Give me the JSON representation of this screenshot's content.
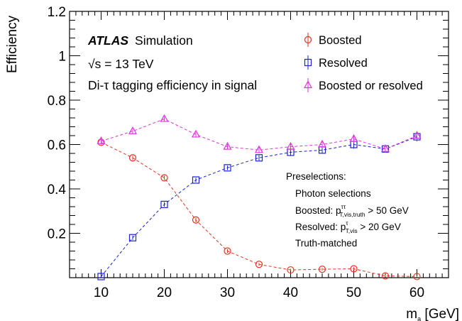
{
  "chart_data": {
    "type": "line",
    "xlabel": "m",
    "xlabel_subscript": "a",
    "xlabel_unit": " [GeV]",
    "ylabel": "Efficiency",
    "xlim": [
      5,
      65
    ],
    "ylim": [
      0,
      1.2
    ],
    "x_ticks": [
      10,
      20,
      30,
      40,
      50,
      60
    ],
    "x_tick_labels": [
      "10",
      "20",
      "30",
      "40",
      "50",
      "60"
    ],
    "y_ticks": [
      0.2,
      0.4,
      0.6,
      0.8,
      1.0,
      1.2
    ],
    "y_tick_labels": [
      "0.2",
      "0.4",
      "0.6",
      "0.8",
      "1",
      "1.2"
    ],
    "x": [
      10,
      15,
      20,
      25,
      30,
      35,
      40,
      45,
      50,
      55,
      60
    ],
    "series": [
      {
        "name": "Boosted",
        "marker": "circle",
        "color": "#e8321e",
        "values": [
          0.61,
          0.54,
          0.45,
          0.26,
          0.12,
          0.06,
          0.035,
          0.038,
          0.04,
          0.008,
          0.005
        ],
        "errors": [
          0.01,
          0.01,
          0.01,
          0.01,
          0.008,
          0.006,
          0.005,
          0.006,
          0.007,
          0.004,
          0.004
        ]
      },
      {
        "name": "Resolved",
        "marker": "square",
        "color": "#1a23d9",
        "values": [
          0.005,
          0.18,
          0.33,
          0.44,
          0.495,
          0.54,
          0.565,
          0.575,
          0.6,
          0.58,
          0.635
        ],
        "errors": [
          0.004,
          0.01,
          0.01,
          0.01,
          0.01,
          0.012,
          0.015,
          0.015,
          0.018,
          0.015,
          0.02
        ]
      },
      {
        "name": "Boosted or resolved",
        "marker": "triangle",
        "color": "#e033e0",
        "values": [
          0.615,
          0.66,
          0.715,
          0.645,
          0.59,
          0.575,
          0.59,
          0.6,
          0.625,
          0.58,
          0.64
        ],
        "errors": [
          0.01,
          0.01,
          0.01,
          0.01,
          0.012,
          0.014,
          0.015,
          0.016,
          0.018,
          0.016,
          0.02
        ]
      }
    ],
    "legend_position": "top-right",
    "annotations": {
      "atlas": "ATLAS",
      "simulation": "Simulation",
      "energy_sqrt": "√s",
      "energy_rest": " = 13 TeV",
      "description_prefix": "Di-",
      "description_tau": "τ",
      "description_rest": " tagging efficiency in signal"
    },
    "preselections": {
      "title": "Preselections:",
      "photon": "Photon selections",
      "boosted_prefix": "Boosted: p",
      "boosted_sup": "ττ",
      "boosted_sub": "T,vis,truth",
      "boosted_rest": " > 50 GeV",
      "resolved_prefix": "Resolved: p",
      "resolved_sup": "τ",
      "resolved_sub": "T,vis",
      "resolved_rest": " > 20 GeV",
      "truth": "Truth-matched"
    }
  }
}
